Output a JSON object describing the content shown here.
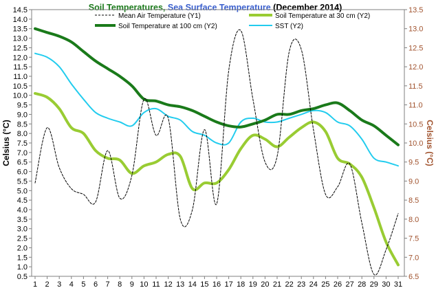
{
  "chart_data": {
    "type": "line",
    "title": {
      "part1": "Soil Temperatures",
      "sep": ", ",
      "part2": "Sea Surface Temperature",
      "part3": " (December 2014)"
    },
    "ylabel_left": "Celsius (°C)",
    "ylabel_right": "Celsius (°C)",
    "x": [
      1,
      2,
      3,
      4,
      5,
      6,
      7,
      8,
      9,
      10,
      11,
      12,
      13,
      14,
      15,
      16,
      17,
      18,
      19,
      20,
      21,
      22,
      23,
      24,
      25,
      26,
      27,
      28,
      29,
      30,
      31
    ],
    "y1_range": [
      0.5,
      14.5
    ],
    "y1_ticks": [
      "0.5",
      "1.0",
      "1.5",
      "2.0",
      "2.5",
      "3.0",
      "3.5",
      "4.0",
      "4.5",
      "5.0",
      "5.5",
      "6.0",
      "6.5",
      "7.0",
      "7.5",
      "8.0",
      "8.5",
      "9.0",
      "9.5",
      "10.0",
      "10.5",
      "11.0",
      "11.5",
      "12.0",
      "12.5",
      "13.0",
      "13.5",
      "14.0",
      "14.5"
    ],
    "y2_range": [
      6.5,
      13.5
    ],
    "y2_ticks": [
      "6.5",
      "7.0",
      "7.5",
      "8.0",
      "8.5",
      "9.0",
      "9.5",
      "10.0",
      "10.5",
      "11.0",
      "11.5",
      "12.0",
      "12.5",
      "13.0",
      "13.5"
    ],
    "grid": false,
    "legend_position": "top-center",
    "colors": {
      "title_soil": "#1b7a1b",
      "title_sst": "#3a5fcd",
      "title_dec": "#000000",
      "right_axis": "#a0522d"
    },
    "series": [
      {
        "name": "Mean Air Temperature (Y1)",
        "axis": "y1",
        "color": "#000000",
        "style": "dashed",
        "values": [
          5.4,
          8.3,
          6.2,
          5.1,
          4.8,
          4.4,
          7.1,
          4.6,
          5.8,
          9.8,
          7.9,
          8.8,
          3.5,
          4.0,
          8.2,
          4.3,
          11.3,
          13.4,
          9.8,
          6.5,
          6.8,
          12.3,
          12.4,
          8.2,
          4.8,
          5.2,
          6.4,
          3.3,
          0.6,
          1.9,
          3.8
        ]
      },
      {
        "name": "Soil Temperature at 30 cm (Y2)",
        "axis": "y2",
        "color": "#99cc33",
        "style": "solid-thick",
        "values": [
          11.3,
          11.2,
          10.9,
          10.4,
          10.25,
          9.8,
          9.6,
          9.55,
          9.2,
          9.4,
          9.5,
          9.7,
          9.65,
          8.8,
          8.95,
          8.95,
          9.3,
          9.85,
          10.2,
          10.1,
          9.9,
          10.15,
          10.4,
          10.55,
          10.3,
          9.6,
          9.45,
          9.1,
          8.3,
          7.4,
          6.8
        ]
      },
      {
        "name": "Soil Temperature at 100 cm (Y2)",
        "axis": "y2",
        "color": "#1a7a1a",
        "style": "solid-thick",
        "values": [
          13.0,
          12.9,
          12.8,
          12.65,
          12.4,
          12.15,
          11.95,
          11.75,
          11.5,
          11.15,
          11.1,
          11.0,
          10.95,
          10.85,
          10.7,
          10.55,
          10.45,
          10.42,
          10.5,
          10.6,
          10.75,
          10.75,
          10.85,
          10.9,
          11.0,
          11.05,
          10.85,
          10.6,
          10.45,
          10.2,
          9.95
        ]
      },
      {
        "name": "SST (Y2)",
        "axis": "y2",
        "color": "#22ccee",
        "style": "solid",
        "values": [
          12.35,
          12.25,
          12.0,
          11.55,
          11.15,
          10.8,
          10.65,
          10.55,
          10.45,
          10.8,
          10.9,
          10.7,
          10.6,
          10.3,
          10.2,
          10.0,
          10.0,
          10.55,
          10.65,
          10.55,
          10.55,
          10.65,
          10.75,
          10.85,
          10.8,
          10.55,
          10.45,
          10.1,
          9.6,
          9.5,
          9.4
        ]
      }
    ]
  }
}
